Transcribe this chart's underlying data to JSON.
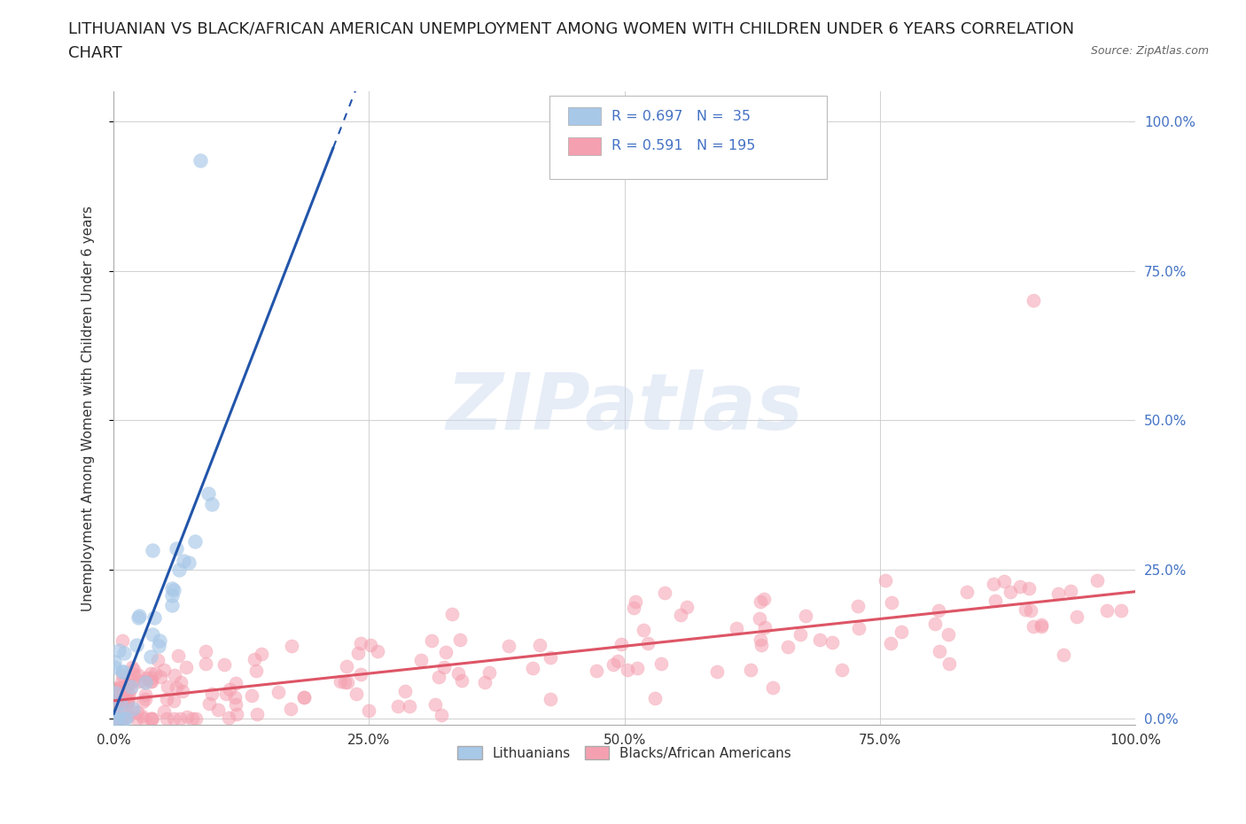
{
  "title_line1": "LITHUANIAN VS BLACK/AFRICAN AMERICAN UNEMPLOYMENT AMONG WOMEN WITH CHILDREN UNDER 6 YEARS CORRELATION",
  "title_line2": "CHART",
  "source_text": "Source: ZipAtlas.com",
  "ylabel": "Unemployment Among Women with Children Under 6 years",
  "xmin": 0.0,
  "xmax": 1.0,
  "ymin": -0.01,
  "ymax": 1.05,
  "xtick_labels": [
    "0.0%",
    "25.0%",
    "50.0%",
    "75.0%",
    "100.0%"
  ],
  "xtick_values": [
    0.0,
    0.25,
    0.5,
    0.75,
    1.0
  ],
  "ytick_values": [
    0.0,
    0.25,
    0.5,
    0.75,
    1.0
  ],
  "ytick_labels_right": [
    "0.0%",
    "25.0%",
    "50.0%",
    "75.0%",
    "100.0%"
  ],
  "blue_color": "#a8c8e8",
  "pink_color": "#f5a0b0",
  "blue_line_color": "#2255aa",
  "pink_line_color": "#dd5566",
  "background_color": "#ffffff",
  "grid_color": "#cccccc",
  "legend_label1": "Lithuanians",
  "legend_label2": "Blacks/African Americans",
  "watermark": "ZIPatlas",
  "title_fontsize": 13,
  "axis_label_fontsize": 11,
  "tick_fontsize": 11,
  "blue_n": 35,
  "pink_n": 195,
  "blue_r": 0.697,
  "pink_r": 0.591,
  "tick_color": "#4472C4"
}
